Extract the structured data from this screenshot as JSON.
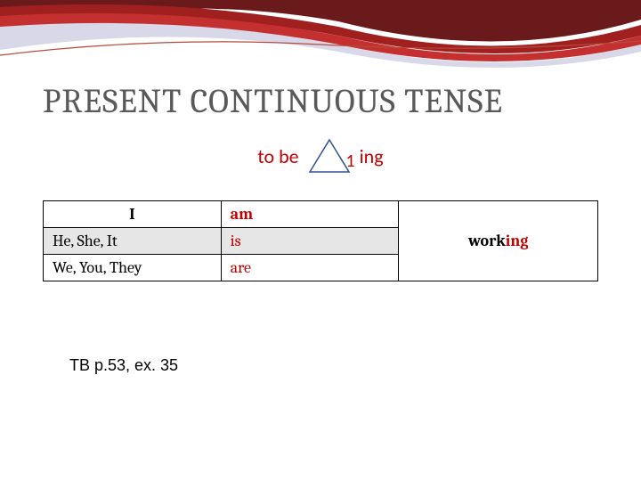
{
  "title": {
    "text": "PRESENT CONTINUOUS TENSE",
    "color": "#595959",
    "fontsize_pt": 38
  },
  "formula": {
    "left_text": "to be",
    "triangle_number": "1",
    "right_text": "ing",
    "text_color": "#c00000",
    "triangle_stroke": "#2f528f",
    "triangle_fill": "#ffffff",
    "number_color": "#c00000"
  },
  "table": {
    "rows": [
      {
        "subject": "I",
        "verb": "am",
        "shaded": false,
        "subj_bold_center": true,
        "verb_bold": true
      },
      {
        "subject": "He, She, It",
        "verb": "is",
        "shaded": true,
        "subj_bold_center": false,
        "verb_bold": false
      },
      {
        "subject": "We, You, They",
        "verb": "are",
        "shaded": false,
        "subj_bold_center": false,
        "verb_bold": false
      }
    ],
    "gerund": {
      "stem": "work",
      "suffix": "ing",
      "stem_color": "#000000",
      "suffix_color": "#c00000"
    },
    "verb_color": "#c00000",
    "border_color": "#000000",
    "shaded_bg": "#e6e6e6"
  },
  "footnote": {
    "text": "TB p.53, ex. 35",
    "color": "#000000"
  },
  "banner": {
    "ribbon_colors": [
      "#6a1a1a",
      "#a02020",
      "#c43030",
      "#d8d8e8",
      "#ffffff"
    ],
    "underline_color": "#b84a3a"
  }
}
